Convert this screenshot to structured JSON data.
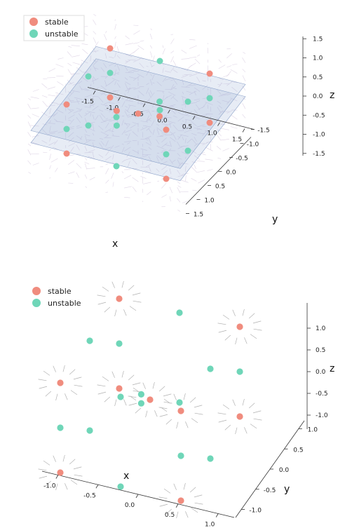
{
  "chart_data": [
    {
      "type": "scatter",
      "projection": "3d",
      "xlabel": "x",
      "ylabel": "y",
      "zlabel": "z",
      "xlim": [
        -1.5,
        1.5
      ],
      "ylim": [
        -1.5,
        1.5
      ],
      "zlim": [
        -1.5,
        1.5
      ],
      "x_ticks": [
        "-1.5",
        "-1.0",
        "-0.5",
        "0.0",
        "0.5",
        "1.0",
        "1.5"
      ],
      "y_ticks": [
        "-1.5",
        "-1.0",
        "-0.5",
        "0.0",
        "0.5",
        "1.0",
        "1.5"
      ],
      "z_ticks": [
        "-1.5",
        "-1.0",
        "-0.5",
        "0.0",
        "0.5",
        "1.0",
        "1.5"
      ],
      "legend_position": "top-left",
      "vector_field": true,
      "planes_z": [
        -0.25,
        0.25
      ],
      "series": [
        {
          "name": "stable",
          "color": "#f08c7e",
          "points": [
            [
              -1,
              -1,
              -1
            ],
            [
              -1,
              -1,
              1
            ],
            [
              -1,
              1,
              -1
            ],
            [
              -1,
              1,
              1
            ],
            [
              1,
              -1,
              -1
            ],
            [
              1,
              -1,
              1
            ],
            [
              1,
              1,
              -1
            ],
            [
              1,
              1,
              1
            ],
            [
              0,
              0,
              0
            ],
            [
              -0.3,
              0.3,
              0.3
            ],
            [
              0.3,
              -0.3,
              -0.3
            ]
          ]
        },
        {
          "name": "unstable",
          "color": "#6fd6b8",
          "points": [
            [
              0,
              -1,
              -1
            ],
            [
              0,
              1,
              -1
            ],
            [
              0,
              -1,
              1
            ],
            [
              0,
              1,
              1
            ],
            [
              -1,
              0,
              -1
            ],
            [
              1,
              0,
              -1
            ],
            [
              -1,
              0,
              1
            ],
            [
              1,
              0,
              1
            ],
            [
              -1,
              -1,
              0
            ],
            [
              1,
              -1,
              0
            ],
            [
              -1,
              1,
              0
            ],
            [
              1,
              1,
              0
            ],
            [
              -0.3,
              0.3,
              -0.3
            ],
            [
              0.3,
              -0.3,
              0.3
            ]
          ]
        }
      ]
    },
    {
      "type": "scatter",
      "projection": "3d",
      "xlabel": "x",
      "ylabel": "y",
      "zlabel": "z",
      "xlim": [
        -1.2,
        1.2
      ],
      "ylim": [
        -1.2,
        1.2
      ],
      "zlim": [
        -1.2,
        1.2
      ],
      "x_ticks": [
        "-1.0",
        "-0.5",
        "0.0",
        "0.5",
        "1.0"
      ],
      "y_ticks": [
        "-1.0",
        "-0.5",
        "0.0",
        "0.5",
        "1.0"
      ],
      "z_ticks": [
        "-1.0",
        "-0.5",
        "0.0",
        "0.5",
        "1.0"
      ],
      "legend_position": "top-left",
      "vector_field": true,
      "series": [
        {
          "name": "stable",
          "color": "#f08c7e",
          "points": [
            [
              -1,
              -1,
              -1
            ],
            [
              -1,
              -1,
              1
            ],
            [
              -1,
              1,
              -1
            ],
            [
              -1,
              1,
              1
            ],
            [
              1,
              -1,
              -1
            ],
            [
              1,
              -1,
              1
            ],
            [
              1,
              1,
              -1
            ],
            [
              1,
              1,
              1
            ],
            [
              0,
              0,
              0
            ]
          ]
        },
        {
          "name": "unstable",
          "color": "#6fd6b8",
          "points": [
            [
              0,
              -1,
              -1
            ],
            [
              0,
              1,
              -1
            ],
            [
              0,
              -1,
              1
            ],
            [
              0,
              1,
              1
            ],
            [
              -1,
              0,
              -1
            ],
            [
              1,
              0,
              -1
            ],
            [
              -1,
              0,
              1
            ],
            [
              1,
              0,
              1
            ],
            [
              -1,
              -1,
              0
            ],
            [
              1,
              -1,
              0
            ],
            [
              -1,
              1,
              0
            ],
            [
              1,
              1,
              0
            ],
            [
              0,
              0.3,
              0.2
            ],
            [
              0,
              0.3,
              0.4
            ]
          ]
        }
      ]
    }
  ]
}
